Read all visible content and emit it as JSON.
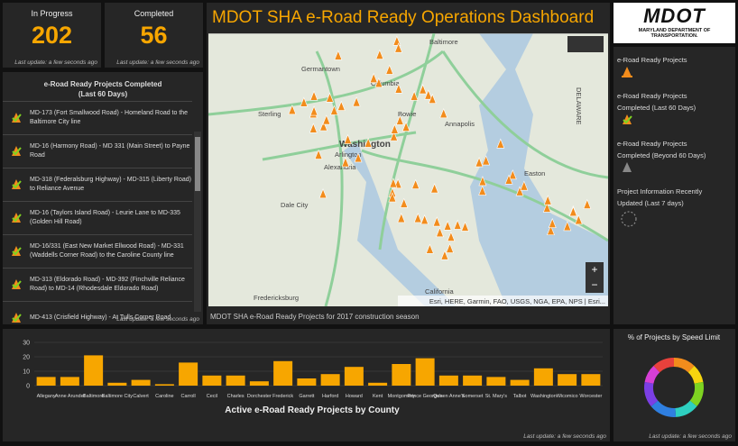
{
  "indicators": [
    {
      "label": "In Progress",
      "value": 202,
      "note": "Last update: a few seconds ago"
    },
    {
      "label": "Completed",
      "value": 56,
      "note": "Last update: a few seconds ago"
    }
  ],
  "header": {
    "title": "MDOT SHA e-Road Ready Operations Dashboard"
  },
  "logo": {
    "name": "MDOT",
    "subtitle": "MARYLAND DEPARTMENT OF TRANSPORTATION."
  },
  "list": {
    "title": "e-Road Ready Projects Completed",
    "subtitle": "(Last 60 Days)",
    "items": [
      "MD-173 (Fort Smallwood Road) - Homeland Road to the Baltimore City line",
      "MD-16 (Harmony Road) - MD 331 (Main Street) to Payne Road",
      "MD-318 (Federalsburg Highway) - MD-315 (Liberty Road) to Reliance Avenue",
      "MD-16 (Taylors Island Road) - Leurie Lane to MD-335 (Golden Hill Road)",
      "MD-16/331 (East New Market Ellwood Road) - MD-331 (Waddells Corner Road) to the Caroline County line",
      "MD-313 (Eldorado Road) - MD-392 (Finchville Reliance Road) to MD-14 (Rhodesdale Eldorado Road)",
      "MD-413 (Crisfield Highway) - At Tulls Corner Road"
    ],
    "note": "Last update: a few seconds ago"
  },
  "map": {
    "labels": [
      "Baltimore",
      "Germantown",
      "Columbia",
      "Sterling",
      "Washington",
      "Arlington",
      "Alexandria",
      "Bowie",
      "Annapolis",
      "Dale City",
      "Easton",
      "Fredericksburg",
      "California",
      "DELAWARE"
    ],
    "attribution": "Esri, HERE, Garmin, FAO, USGS, NGA, EPA, NPS | Esri...",
    "caption": "MDOT SHA e-Road Ready Projects for 2017 construction season"
  },
  "legend": {
    "items": [
      "e-Road Ready Projects",
      "e-Road Ready Projects Completed (Last 60 Days)",
      "e-Road Ready Projects Completed (Beyond 60 Days)",
      "Project Information Recently Updated (Last 7 days)"
    ]
  },
  "bar_chart": {
    "type": "bar",
    "title": "Active e-Road Ready Projects by County",
    "categories": [
      "Allegany",
      "Anne Arundel",
      "Baltimore",
      "Baltimore City",
      "Calvert",
      "Caroline",
      "Carroll",
      "Cecil",
      "Charles",
      "Dorchester",
      "Frederick",
      "Garrett",
      "Harford",
      "Howard",
      "Kent",
      "Montgomery",
      "Prince George's",
      "Queen Anne's",
      "Somerset",
      "St. Mary's",
      "Talbot",
      "Washington",
      "Wicomico",
      "Worcester"
    ],
    "values": [
      6,
      6,
      21,
      2,
      4,
      1,
      16,
      7,
      7,
      3,
      17,
      5,
      8,
      13,
      2,
      15,
      19,
      7,
      7,
      6,
      4,
      12,
      8,
      8
    ],
    "color": "#f7a600",
    "ylim": [
      0,
      30
    ],
    "yticks": [
      0,
      10,
      20,
      30
    ],
    "grid": true,
    "note": "Last update: a few seconds ago"
  },
  "donut_chart": {
    "type": "donut",
    "title": "% of Projects by Speed Limit",
    "values": [
      12,
      10,
      14,
      13,
      15,
      14,
      10,
      12
    ],
    "colors": [
      "#f28c1c",
      "#f5d50f",
      "#7ed321",
      "#2ecfc0",
      "#2f7fe0",
      "#7b3fe4",
      "#d63fd6",
      "#e8413c"
    ],
    "note": "Last update: a few seconds ago"
  }
}
